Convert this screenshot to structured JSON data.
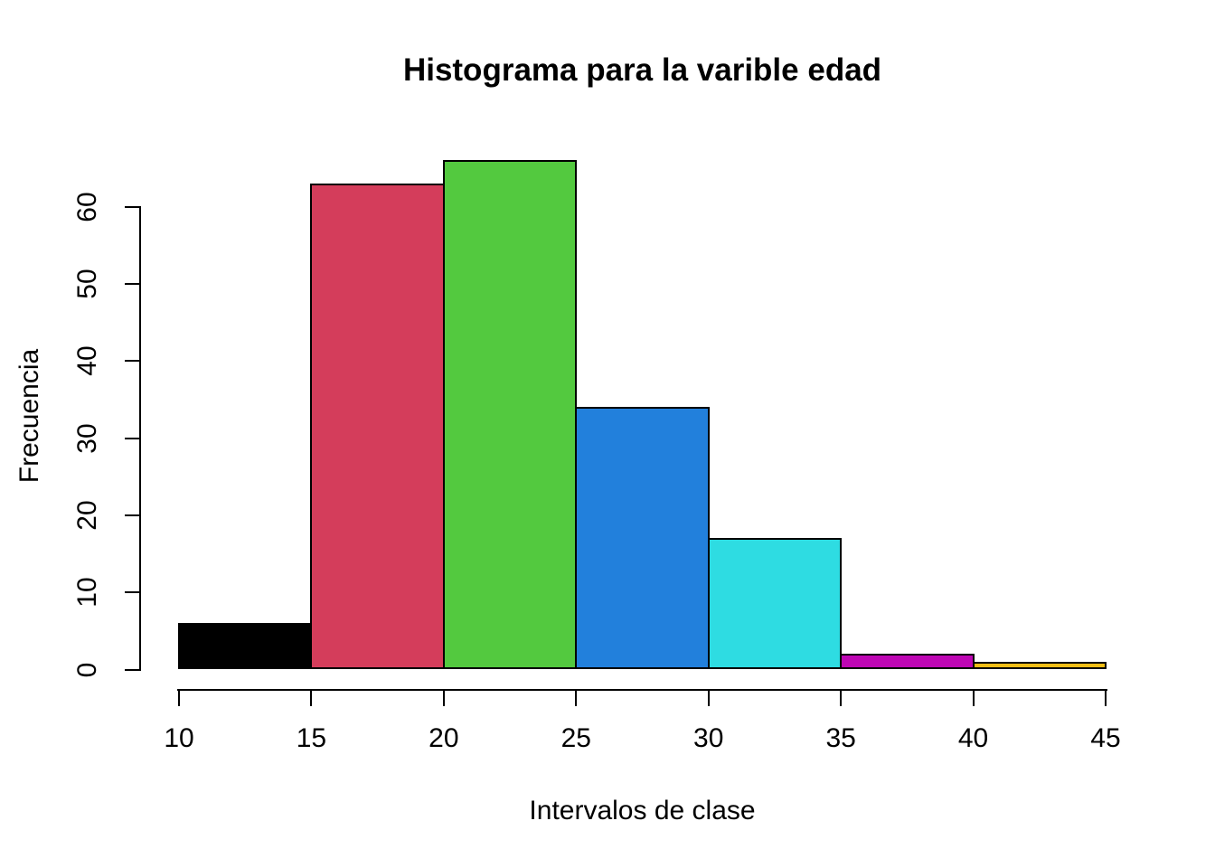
{
  "chart_data": {
    "type": "bar",
    "subtype": "histogram",
    "title": "Histograma para la varible edad",
    "xlabel": "Intervalos de clase",
    "ylabel": "Frecuencia",
    "bin_edges": [
      10,
      15,
      20,
      25,
      30,
      35,
      40,
      45
    ],
    "counts": [
      6,
      63,
      66,
      34,
      17,
      2,
      1
    ],
    "colors": [
      "#000000",
      "#D43D5B",
      "#53C93F",
      "#2280DC",
      "#2EDCE2",
      "#BE06B4",
      "#F0BD15"
    ],
    "bar_border_color": "#000000",
    "x_ticks": [
      10,
      15,
      20,
      25,
      30,
      35,
      40,
      45
    ],
    "y_ticks": [
      0,
      10,
      20,
      30,
      40,
      50,
      60
    ],
    "xlim": [
      10,
      45
    ],
    "ylim": [
      0,
      66
    ],
    "grid": false,
    "legend": "none",
    "background_color": "#FFFFFF",
    "axis_color": "#000000"
  }
}
